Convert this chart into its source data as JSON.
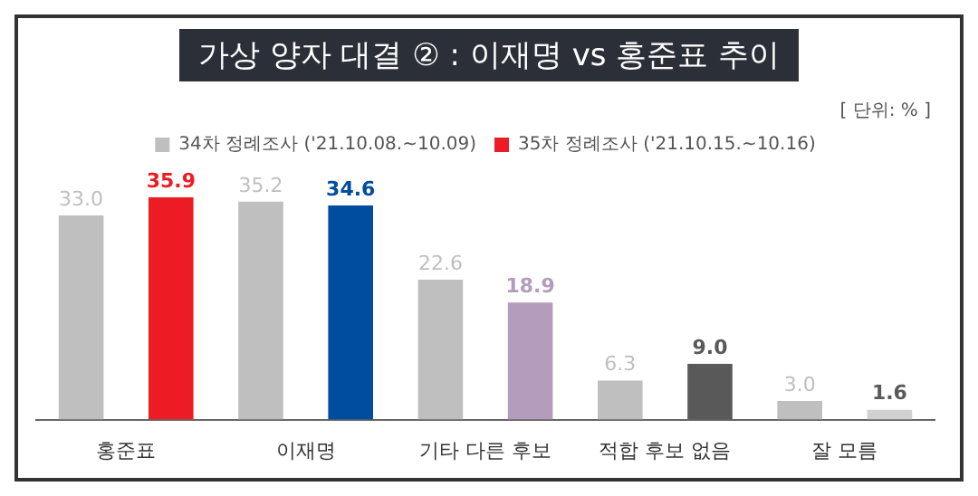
{
  "chart_data": {
    "type": "bar",
    "title": "가상  양자 대결 ② : 이재명 vs 홍준표 추이",
    "annotations": [
      "[ 단위: % ]"
    ],
    "categories": [
      "홍준표",
      "이재명",
      "기타 다른 후보",
      "적합 후보 없음",
      "잘 모름"
    ],
    "series": [
      {
        "name": "34차 정례조사 ('21.10.08.~10.09)",
        "color": "#bfbfbf",
        "values": [
          33.0,
          35.2,
          22.6,
          6.3,
          3.0
        ],
        "value_labels": [
          "33.0",
          "35.2",
          "22.6",
          "6.3",
          "3.0"
        ]
      },
      {
        "name": "35차 정례조사 ('21.10.15.~10.16)",
        "color": "#ed1c24",
        "colors": [
          "#ed1c24",
          "#004c9e",
          "#b49cbc",
          "#595959",
          "#d0d0d0"
        ],
        "values": [
          35.9,
          34.6,
          18.9,
          9.0,
          1.6
        ],
        "value_labels": [
          "35.9",
          "34.6",
          "18.9",
          "9.0",
          "1.6"
        ]
      }
    ],
    "legend": "top",
    "grid": false
  }
}
